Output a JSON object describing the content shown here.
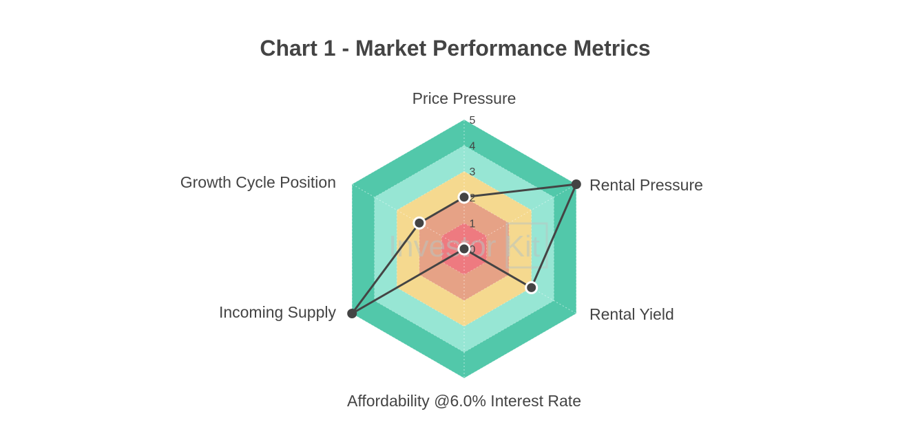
{
  "chart_data": {
    "type": "radar",
    "title": "Chart 1 - Market Performance Metrics",
    "axes": [
      "Price Pressure",
      "Rental Pressure",
      "Rental Yield",
      "Affordability @6.0% Interest Rate",
      "Incoming Supply",
      "Growth Cycle Position"
    ],
    "rlim": [
      0,
      5
    ],
    "ticks": [
      "0",
      "1",
      "2",
      "3",
      "4",
      "5"
    ],
    "series": [
      {
        "values": [
          2,
          5,
          3,
          0,
          5,
          2
        ],
        "color": "#444444"
      }
    ],
    "bands": [
      {
        "from": 0,
        "to": 1,
        "color": "#ee7a80"
      },
      {
        "from": 1,
        "to": 2,
        "color": "#e6a286"
      },
      {
        "from": 2,
        "to": 3,
        "color": "#f5d98f"
      },
      {
        "from": 3,
        "to": 4,
        "color": "#97e6d4"
      },
      {
        "from": 4,
        "to": 5,
        "color": "#52c8aa"
      }
    ]
  },
  "watermark": "Investor Kit"
}
